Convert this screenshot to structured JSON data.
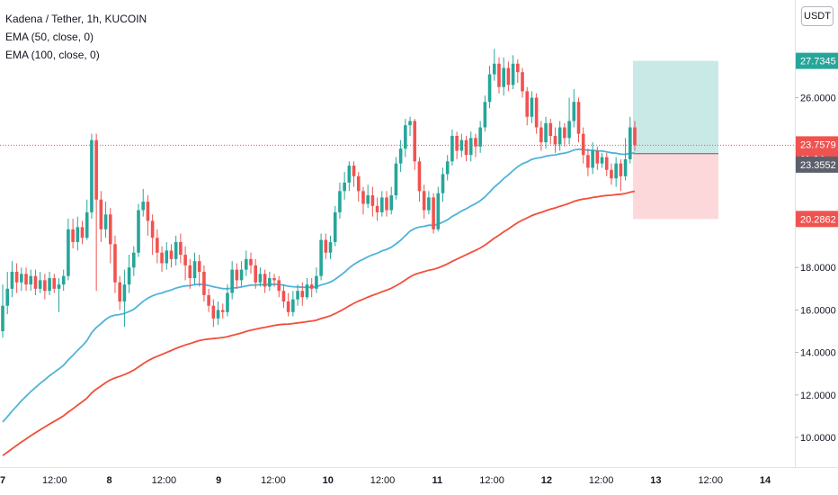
{
  "header": {
    "title": "Kadena / Tether, 1h, KUCOIN",
    "ema50_label": "EMA (50, close, 0)",
    "ema100_label": "EMA (100, close, 0)",
    "currency": "USDT"
  },
  "price_tags": {
    "target": "27.7345",
    "current": "23.7579",
    "countdown": "11:04",
    "ema_value": "23.3552",
    "stop": "20.2862"
  },
  "colors": {
    "up": "#26a69a",
    "down": "#ef5350",
    "ema50": "#4fb3d9",
    "ema100": "#f24e3b",
    "target_zone": "#b2dfdb",
    "stop_zone": "#fccbcd",
    "ema_tag": "#5d606b"
  },
  "chart_data": {
    "type": "candlestick",
    "symbol": "Kadena / Tether",
    "interval": "1h",
    "exchange": "KUCOIN",
    "ylim": [
      8.6,
      30.6
    ],
    "y_ticks": [
      "10.0000",
      "12.0000",
      "14.0000",
      "16.0000",
      "18.0000",
      "26.0000"
    ],
    "x_ticks": [
      "7",
      "12:00",
      "8",
      "12:00",
      "9",
      "12:00",
      "10",
      "12:00",
      "11",
      "12:00",
      "12",
      "12:00",
      "13",
      "12:00",
      "14"
    ],
    "position": {
      "entry": 23.36,
      "target": 27.7345,
      "stop": 20.2862
    },
    "current_price": 23.7579,
    "candles": [
      [
        15.0,
        16.2,
        17.2,
        14.7
      ],
      [
        16.2,
        17.0,
        17.8,
        15.8
      ],
      [
        17.0,
        17.8,
        18.3,
        16.6
      ],
      [
        17.8,
        17.3,
        18.2,
        16.8
      ],
      [
        17.3,
        17.7,
        18.0,
        16.9
      ],
      [
        17.7,
        17.2,
        18.0,
        16.9
      ],
      [
        17.2,
        17.6,
        17.9,
        16.9
      ],
      [
        17.6,
        17.0,
        17.9,
        16.7
      ],
      [
        17.0,
        17.4,
        17.8,
        16.8
      ],
      [
        17.4,
        16.9,
        17.7,
        16.5
      ],
      [
        16.9,
        17.5,
        17.8,
        16.7
      ],
      [
        17.5,
        17.0,
        17.7,
        16.8
      ],
      [
        17.0,
        17.2,
        17.5,
        15.9
      ],
      [
        17.2,
        17.6,
        17.9,
        16.9
      ],
      [
        17.6,
        19.8,
        20.3,
        17.4
      ],
      [
        19.8,
        19.2,
        20.3,
        18.9
      ],
      [
        19.2,
        19.9,
        20.4,
        18.8
      ],
      [
        19.9,
        19.4,
        20.2,
        19.1
      ],
      [
        19.4,
        20.6,
        21.2,
        19.3
      ],
      [
        20.6,
        24.0,
        24.3,
        20.3
      ],
      [
        24.0,
        21.2,
        24.3,
        16.9
      ],
      [
        21.2,
        19.8,
        21.6,
        19.2
      ],
      [
        19.8,
        20.5,
        21.1,
        19.4
      ],
      [
        20.5,
        19.1,
        20.8,
        18.2
      ],
      [
        19.1,
        17.3,
        19.5,
        16.8
      ],
      [
        17.3,
        16.4,
        17.6,
        16.0
      ],
      [
        16.4,
        17.2,
        17.9,
        15.2
      ],
      [
        17.2,
        18.0,
        18.6,
        16.8
      ],
      [
        18.0,
        18.7,
        19.0,
        17.6
      ],
      [
        18.7,
        20.7,
        21.0,
        18.5
      ],
      [
        20.7,
        21.1,
        21.7,
        20.4
      ],
      [
        21.1,
        20.2,
        21.4,
        19.5
      ],
      [
        20.2,
        19.4,
        20.5,
        18.6
      ],
      [
        19.4,
        18.7,
        19.8,
        18.2
      ],
      [
        18.7,
        18.2,
        19.0,
        17.8
      ],
      [
        18.2,
        18.8,
        19.2,
        17.9
      ],
      [
        18.8,
        18.4,
        19.1,
        18.0
      ],
      [
        18.4,
        19.2,
        19.5,
        18.1
      ],
      [
        19.2,
        18.6,
        19.6,
        18.2
      ],
      [
        18.6,
        18.1,
        19.0,
        17.4
      ],
      [
        18.1,
        17.5,
        18.4,
        17.0
      ],
      [
        17.5,
        18.3,
        18.7,
        17.2
      ],
      [
        18.3,
        17.8,
        18.6,
        17.1
      ],
      [
        17.8,
        16.7,
        18.1,
        16.4
      ],
      [
        16.7,
        16.2,
        17.0,
        15.9
      ],
      [
        16.2,
        15.6,
        16.5,
        15.2
      ],
      [
        15.6,
        16.0,
        16.4,
        15.3
      ],
      [
        16.0,
        15.9,
        16.3,
        15.6
      ],
      [
        15.9,
        16.8,
        17.2,
        15.7
      ],
      [
        16.8,
        17.9,
        18.3,
        16.5
      ],
      [
        17.9,
        17.4,
        18.2,
        17.0
      ],
      [
        17.4,
        17.9,
        18.3,
        17.1
      ],
      [
        17.9,
        18.4,
        18.8,
        17.6
      ],
      [
        18.4,
        18.1,
        18.7,
        17.7
      ],
      [
        18.1,
        17.3,
        18.4,
        17.0
      ],
      [
        17.3,
        17.7,
        18.0,
        17.1
      ],
      [
        17.7,
        17.1,
        17.9,
        16.8
      ],
      [
        17.1,
        17.5,
        17.8,
        16.9
      ],
      [
        17.5,
        17.4,
        17.7,
        17.1
      ],
      [
        17.4,
        16.9,
        17.6,
        16.6
      ],
      [
        16.9,
        16.4,
        17.2,
        16.1
      ],
      [
        16.4,
        15.9,
        16.8,
        15.7
      ],
      [
        15.9,
        16.5,
        16.9,
        15.7
      ],
      [
        16.5,
        16.9,
        17.2,
        16.2
      ],
      [
        16.9,
        16.6,
        17.3,
        16.2
      ],
      [
        16.6,
        17.2,
        17.5,
        16.5
      ],
      [
        17.2,
        17.0,
        17.5,
        16.6
      ],
      [
        17.0,
        17.6,
        18.0,
        16.8
      ],
      [
        17.6,
        19.3,
        19.6,
        17.4
      ],
      [
        19.3,
        18.7,
        19.6,
        18.4
      ],
      [
        18.7,
        19.2,
        19.5,
        18.4
      ],
      [
        19.2,
        20.6,
        20.9,
        19.0
      ],
      [
        20.6,
        21.6,
        22.0,
        20.3
      ],
      [
        21.6,
        22.0,
        22.5,
        21.2
      ],
      [
        22.0,
        22.8,
        23.0,
        21.6
      ],
      [
        22.8,
        22.3,
        23.0,
        21.8
      ],
      [
        22.3,
        21.6,
        22.5,
        21.1
      ],
      [
        21.6,
        21.0,
        21.8,
        20.5
      ],
      [
        21.0,
        21.4,
        21.9,
        20.8
      ],
      [
        21.4,
        20.9,
        21.8,
        20.4
      ],
      [
        20.9,
        20.6,
        21.3,
        20.2
      ],
      [
        20.6,
        21.3,
        21.6,
        20.4
      ],
      [
        21.3,
        20.7,
        21.6,
        20.4
      ],
      [
        20.7,
        21.4,
        21.8,
        20.5
      ],
      [
        21.4,
        22.9,
        23.2,
        21.2
      ],
      [
        22.9,
        23.6,
        24.0,
        22.5
      ],
      [
        23.6,
        24.7,
        25.0,
        23.2
      ],
      [
        24.7,
        24.9,
        25.1,
        24.2
      ],
      [
        24.9,
        23.0,
        25.0,
        22.6
      ],
      [
        23.0,
        21.6,
        23.2,
        21.1
      ],
      [
        21.6,
        20.7,
        21.9,
        20.3
      ],
      [
        20.7,
        21.3,
        21.6,
        20.5
      ],
      [
        21.3,
        19.8,
        21.5,
        19.6
      ],
      [
        19.8,
        21.5,
        21.8,
        19.7
      ],
      [
        21.5,
        22.4,
        22.7,
        21.1
      ],
      [
        22.4,
        23.0,
        23.3,
        22.1
      ],
      [
        23.0,
        24.2,
        24.5,
        22.8
      ],
      [
        24.2,
        23.5,
        24.4,
        23.1
      ],
      [
        23.5,
        24.0,
        24.3,
        23.2
      ],
      [
        24.0,
        23.3,
        24.2,
        23.0
      ],
      [
        23.3,
        24.1,
        24.4,
        23.0
      ],
      [
        24.1,
        23.7,
        24.3,
        23.2
      ],
      [
        23.7,
        24.6,
        24.9,
        23.4
      ],
      [
        24.6,
        25.8,
        26.1,
        24.4
      ],
      [
        25.8,
        27.1,
        27.5,
        25.5
      ],
      [
        27.1,
        27.6,
        28.3,
        26.8
      ],
      [
        27.6,
        26.5,
        27.9,
        26.2
      ],
      [
        26.5,
        27.4,
        27.9,
        26.1
      ],
      [
        27.4,
        26.6,
        27.7,
        26.3
      ],
      [
        26.6,
        27.6,
        28.0,
        26.4
      ],
      [
        27.6,
        27.2,
        27.8,
        26.7
      ],
      [
        27.2,
        26.3,
        27.4,
        26.0
      ],
      [
        26.3,
        25.1,
        26.5,
        24.7
      ],
      [
        25.1,
        26.0,
        26.3,
        24.8
      ],
      [
        26.0,
        24.6,
        26.2,
        24.3
      ],
      [
        24.6,
        23.9,
        24.9,
        23.5
      ],
      [
        23.9,
        24.8,
        25.1,
        23.6
      ],
      [
        24.8,
        24.2,
        25.0,
        23.8
      ],
      [
        24.2,
        23.8,
        24.6,
        23.4
      ],
      [
        23.8,
        24.6,
        24.9,
        23.5
      ],
      [
        24.6,
        24.1,
        24.8,
        23.7
      ],
      [
        24.1,
        24.9,
        26.0,
        23.8
      ],
      [
        24.9,
        25.8,
        26.4,
        24.6
      ],
      [
        25.8,
        24.3,
        26.0,
        23.9
      ],
      [
        24.3,
        23.3,
        24.6,
        22.9
      ],
      [
        23.3,
        22.7,
        23.6,
        22.3
      ],
      [
        22.7,
        23.5,
        23.9,
        22.4
      ],
      [
        23.5,
        22.9,
        23.7,
        22.6
      ],
      [
        22.9,
        23.2,
        23.4,
        22.7
      ],
      [
        23.2,
        22.6,
        23.4,
        22.3
      ],
      [
        22.6,
        22.2,
        22.9,
        21.9
      ],
      [
        22.2,
        22.9,
        23.2,
        21.8
      ],
      [
        22.9,
        22.3,
        23.1,
        21.6
      ],
      [
        22.3,
        23.1,
        24.1,
        22.1
      ],
      [
        23.1,
        24.6,
        25.1,
        22.9
      ],
      [
        24.6,
        23.76,
        24.9,
        23.5
      ]
    ]
  }
}
